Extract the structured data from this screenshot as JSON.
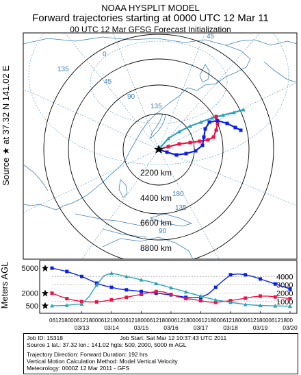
{
  "header": {
    "line1": "NOAA HYSPLIT MODEL",
    "line2": "Forward trajectories starting at 0000 UTC 12 Mar 11",
    "line3": "00 UTC 12 Mar    GFSG  Forecast Initialization"
  },
  "source_label": "Source ★ at   37.32 N  141.02 E",
  "map": {
    "range_rings_km": [
      "2200 km",
      "4400 km",
      "6600 km",
      "8800 km"
    ],
    "graticule_labels": [
      "45",
      "0",
      "45",
      "135",
      "90",
      "135",
      "180",
      "135",
      "90"
    ]
  },
  "colors": {
    "red": "#ee1144",
    "blue": "#0a1ee6",
    "teal": "#2aa3b8"
  },
  "chart_data": {
    "type": "line",
    "ylabel": "Meters AGL",
    "left_ticks": [
      "5000",
      "2000",
      "500"
    ],
    "right_ticks": [
      "4000",
      "3000",
      "2000",
      "1000"
    ],
    "ylim": [
      0,
      5500
    ],
    "x_hours": [
      0,
      192
    ],
    "x_tick_top": "06121800061218000612180006121800061218000612180006121800061218000612180006121800",
    "date_labels": [
      "03/13",
      "03/14",
      "03/15",
      "03/16",
      "03/17",
      "03/18",
      "03/19",
      "03/20"
    ],
    "series": [
      {
        "color": "blue",
        "marker": "square",
        "start_m": 5000,
        "points": [
          [
            0,
            5000
          ],
          [
            6,
            4800
          ],
          [
            12,
            4600
          ],
          [
            18,
            4300
          ],
          [
            24,
            4000
          ],
          [
            30,
            3600
          ],
          [
            36,
            3200
          ],
          [
            42,
            2900
          ],
          [
            48,
            2700
          ],
          [
            54,
            2500
          ],
          [
            60,
            2400
          ],
          [
            66,
            2300
          ],
          [
            72,
            2200
          ],
          [
            78,
            2100
          ],
          [
            84,
            2000
          ],
          [
            90,
            1900
          ],
          [
            96,
            1800
          ],
          [
            102,
            1650
          ],
          [
            108,
            1500
          ],
          [
            114,
            1450
          ],
          [
            120,
            1500
          ],
          [
            126,
            1900
          ],
          [
            132,
            2700
          ],
          [
            138,
            3500
          ],
          [
            144,
            4200
          ],
          [
            150,
            4300
          ],
          [
            156,
            4200
          ],
          [
            162,
            4000
          ],
          [
            168,
            3700
          ],
          [
            174,
            3400
          ],
          [
            180,
            3100
          ],
          [
            186,
            2800
          ],
          [
            192,
            2500
          ]
        ]
      },
      {
        "color": "red",
        "marker": "square",
        "start_m": 2000,
        "points": [
          [
            0,
            2000
          ],
          [
            6,
            1650
          ],
          [
            12,
            1350
          ],
          [
            18,
            1150
          ],
          [
            24,
            1000
          ],
          [
            30,
            950
          ],
          [
            36,
            950
          ],
          [
            42,
            1050
          ],
          [
            48,
            1200
          ],
          [
            54,
            1350
          ],
          [
            60,
            1500
          ],
          [
            66,
            1700
          ],
          [
            72,
            1850
          ],
          [
            78,
            2050
          ],
          [
            84,
            2200
          ],
          [
            90,
            2150
          ],
          [
            96,
            1850
          ],
          [
            102,
            1550
          ],
          [
            108,
            1350
          ],
          [
            114,
            1250
          ],
          [
            120,
            1100
          ],
          [
            126,
            950
          ],
          [
            132,
            900
          ],
          [
            138,
            1000
          ],
          [
            144,
            1100
          ],
          [
            150,
            1250
          ],
          [
            156,
            1400
          ],
          [
            162,
            1550
          ],
          [
            168,
            1650
          ],
          [
            174,
            1650
          ],
          [
            180,
            1550
          ],
          [
            186,
            1450
          ],
          [
            192,
            1350
          ]
        ]
      },
      {
        "color": "teal",
        "marker": "triangle",
        "start_m": 500,
        "points": [
          [
            0,
            500
          ],
          [
            6,
            500
          ],
          [
            12,
            550
          ],
          [
            18,
            650
          ],
          [
            24,
            700
          ],
          [
            30,
            1600
          ],
          [
            36,
            3000
          ],
          [
            42,
            4100
          ],
          [
            48,
            4400
          ],
          [
            54,
            4200
          ],
          [
            60,
            4000
          ],
          [
            66,
            3800
          ],
          [
            72,
            3600
          ],
          [
            78,
            3400
          ],
          [
            84,
            3150
          ],
          [
            90,
            2900
          ],
          [
            96,
            2650
          ],
          [
            102,
            2400
          ],
          [
            108,
            2150
          ],
          [
            114,
            1900
          ],
          [
            120,
            1650
          ],
          [
            126,
            1400
          ],
          [
            132,
            1200
          ],
          [
            138,
            1050
          ],
          [
            144,
            900
          ],
          [
            150,
            780
          ],
          [
            156,
            650
          ],
          [
            162,
            580
          ],
          [
            168,
            530
          ],
          [
            174,
            500
          ],
          [
            180,
            480
          ],
          [
            186,
            460
          ],
          [
            192,
            440
          ]
        ]
      }
    ]
  },
  "info": {
    "job_id": "Job ID: 15318",
    "job_start": "Job Start: Sat Mar 12 10:37:43 UTC 2011",
    "source": "Source 1 lat.: 37.32  lon.: 141.02  hgts: 500, 2000, 5000 m AGL",
    "direction": "Trajectory Direction: Forward       Duration: 192 hrs",
    "vertical": "Vertical Motion Calculation Method:      Model Vertical Velocity",
    "meteorology": "Meteorology: 0000Z 12 Mar 2011 - GFS"
  }
}
